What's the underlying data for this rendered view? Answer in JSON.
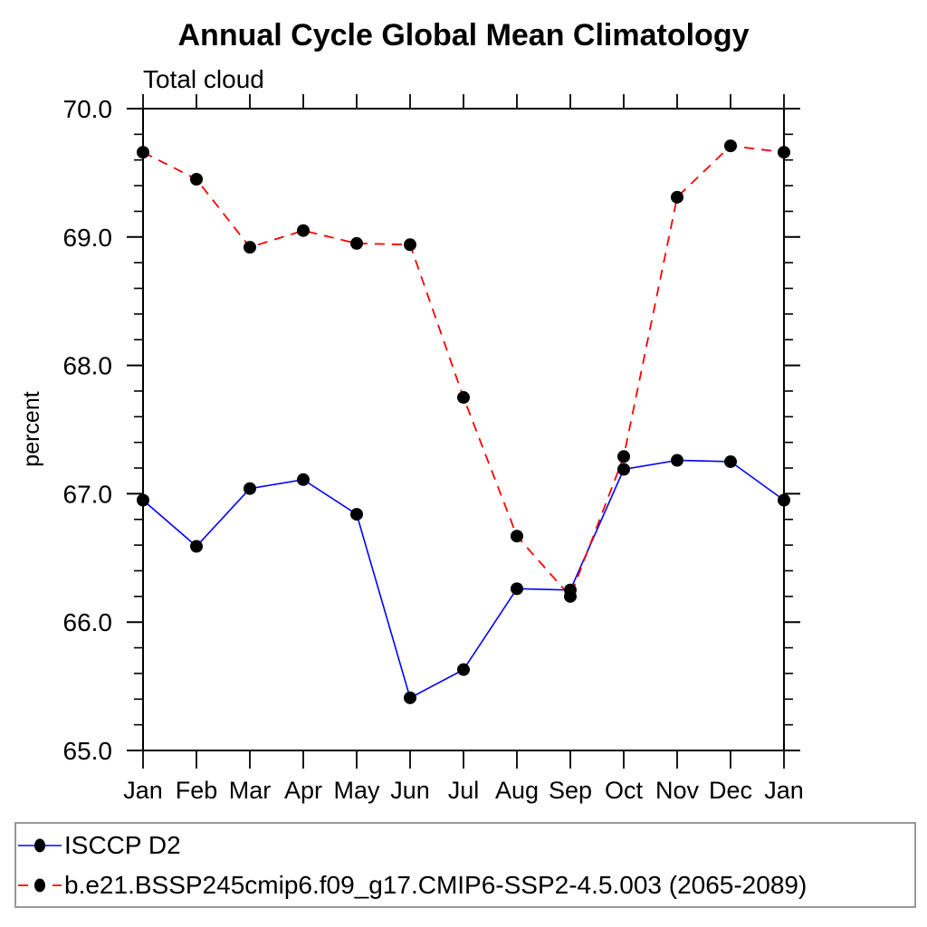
{
  "chart_data": {
    "type": "line",
    "title": "Annual Cycle Global Mean Climatology",
    "subtitle": "Total cloud",
    "xlabel": "",
    "ylabel": "percent",
    "ylim": [
      65.0,
      70.0
    ],
    "ytick_major": [
      65.0,
      66.0,
      67.0,
      68.0,
      69.0,
      70.0
    ],
    "ytick_labels": [
      "65.0",
      "66.0",
      "67.0",
      "68.0",
      "69.0",
      "70.0"
    ],
    "ytick_minor_step": 0.2,
    "categories": [
      "Jan",
      "Feb",
      "Mar",
      "Apr",
      "May",
      "Jun",
      "Jul",
      "Aug",
      "Sep",
      "Oct",
      "Nov",
      "Dec",
      "Jan"
    ],
    "grid": false,
    "legend_position": "bottom-left-box",
    "marker": {
      "shape": "filled-circle",
      "color": "#000000"
    },
    "series": [
      {
        "name": "ISCCP D2",
        "color": "#0000ff",
        "style": "solid",
        "values": [
          66.95,
          66.59,
          67.04,
          67.11,
          66.84,
          65.41,
          65.63,
          66.26,
          66.25,
          67.19,
          67.26,
          67.25,
          66.95
        ]
      },
      {
        "name": "b.e21.BSSP245cmip6.f09_g17.CMIP6-SSP2-4.5.003 (2065-2089)",
        "color": "#ff0000",
        "style": "dashed",
        "values": [
          69.66,
          69.45,
          68.92,
          69.05,
          68.95,
          68.94,
          67.75,
          66.67,
          66.2,
          67.29,
          69.31,
          69.71,
          69.66
        ]
      }
    ],
    "colors": {
      "axis": "#000000",
      "text": "#000000",
      "legend_border": "#999999",
      "background": "#ffffff"
    }
  }
}
